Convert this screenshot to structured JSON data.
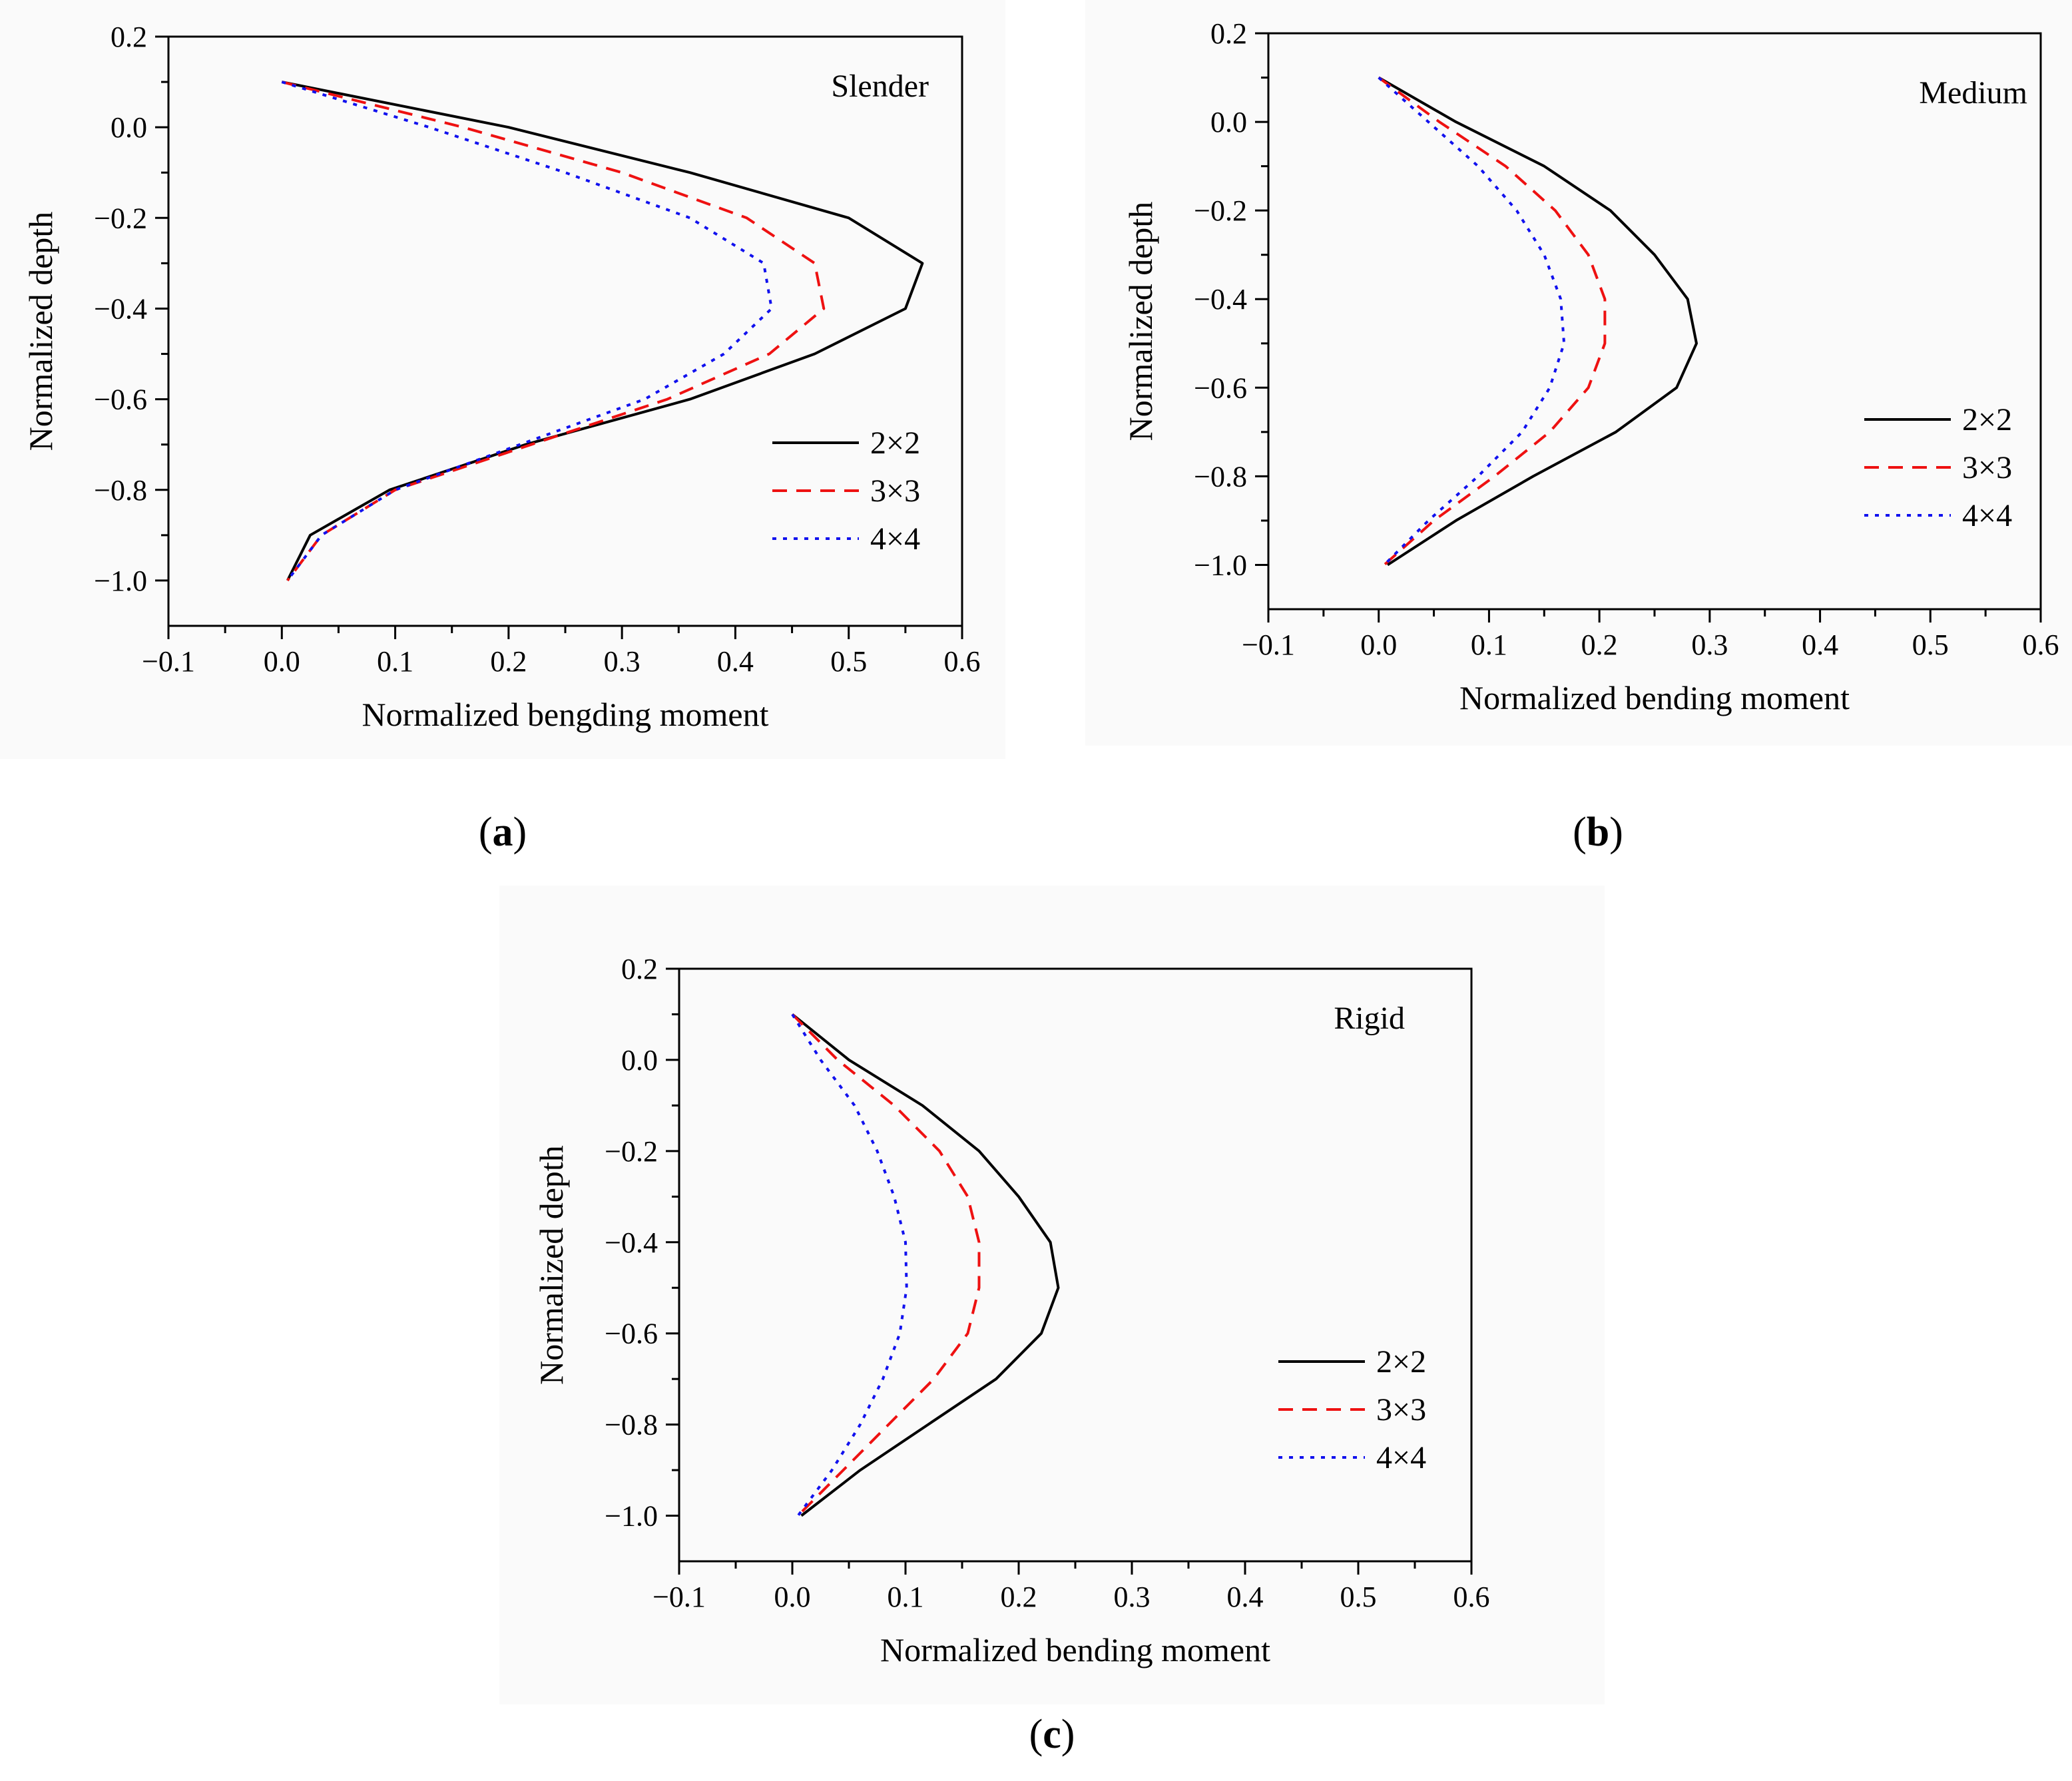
{
  "figure": {
    "panels": [
      {
        "id": "a",
        "caption_letter": "a",
        "chart_data": {
          "type": "line",
          "title": "Slender",
          "xlabel": "Normalized bengding moment",
          "ylabel": "Normalized depth",
          "xlim": [
            -0.1,
            0.6
          ],
          "ylim": [
            -1.1,
            0.2
          ],
          "xticks": [
            -0.1,
            0.0,
            0.1,
            0.2,
            0.3,
            0.4,
            0.5,
            0.6
          ],
          "xtick_labels": [
            "−0.1",
            "0.0",
            "0.1",
            "0.2",
            "0.3",
            "0.4",
            "0.5",
            "0.6"
          ],
          "yticks": [
            0.2,
            0.0,
            -0.2,
            -0.4,
            -0.6,
            -0.8,
            -1.0
          ],
          "ytick_labels": [
            "0.2",
            "0.0",
            "−0.2",
            "−0.4",
            "−0.6",
            "−0.8",
            "−1.0"
          ],
          "legend_position": "lower-right",
          "series": [
            {
              "name": "2×2",
              "color": "#000000",
              "dash": "solid",
              "x": [
                0.0,
                0.2,
                0.36,
                0.5,
                0.565,
                0.55,
                0.47,
                0.36,
                0.215,
                0.095,
                0.025,
                0.005
              ],
              "y": [
                0.1,
                0.0,
                -0.1,
                -0.2,
                -0.3,
                -0.4,
                -0.5,
                -0.6,
                -0.7,
                -0.8,
                -0.9,
                -1.0
              ]
            },
            {
              "name": "3×3",
              "color": "#ee1111",
              "dash": "dashed",
              "x": [
                0.0,
                0.16,
                0.3,
                0.41,
                0.47,
                0.478,
                0.43,
                0.34,
                0.22,
                0.1,
                0.035,
                0.005
              ],
              "y": [
                0.1,
                0.0,
                -0.1,
                -0.2,
                -0.3,
                -0.4,
                -0.5,
                -0.6,
                -0.7,
                -0.8,
                -0.9,
                -1.0
              ]
            },
            {
              "name": "4×4",
              "color": "#1111ee",
              "dash": "dotted",
              "x": [
                0.0,
                0.13,
                0.25,
                0.36,
                0.425,
                0.432,
                0.39,
                0.32,
                0.21,
                0.1,
                0.035,
                0.005
              ],
              "y": [
                0.1,
                0.0,
                -0.1,
                -0.2,
                -0.3,
                -0.4,
                -0.5,
                -0.6,
                -0.7,
                -0.8,
                -0.9,
                -1.0
              ]
            }
          ]
        }
      },
      {
        "id": "b",
        "caption_letter": "b",
        "chart_data": {
          "type": "line",
          "title": "Medium",
          "xlabel": "Normalized bending moment",
          "ylabel": "Normalized depth",
          "xlim": [
            -0.1,
            0.6
          ],
          "ylim": [
            -1.1,
            0.2
          ],
          "xticks": [
            -0.1,
            0.0,
            0.1,
            0.2,
            0.3,
            0.4,
            0.5,
            0.6
          ],
          "xtick_labels": [
            "−0.1",
            "0.0",
            "0.1",
            "0.2",
            "0.3",
            "0.4",
            "0.5",
            "0.6"
          ],
          "yticks": [
            0.2,
            0.0,
            -0.2,
            -0.4,
            -0.6,
            -0.8,
            -1.0
          ],
          "ytick_labels": [
            "0.2",
            "0.0",
            "−0.2",
            "−0.4",
            "−0.6",
            "−0.8",
            "−1.0"
          ],
          "legend_position": "right",
          "series": [
            {
              "name": "2×2",
              "color": "#000000",
              "dash": "solid",
              "x": [
                0.0,
                0.07,
                0.15,
                0.21,
                0.25,
                0.28,
                0.288,
                0.27,
                0.215,
                0.14,
                0.07,
                0.008
              ],
              "y": [
                0.1,
                0.0,
                -0.1,
                -0.2,
                -0.3,
                -0.4,
                -0.5,
                -0.6,
                -0.7,
                -0.8,
                -0.9,
                -1.0
              ]
            },
            {
              "name": "3×3",
              "color": "#ee1111",
              "dash": "dashed",
              "x": [
                0.0,
                0.055,
                0.115,
                0.16,
                0.19,
                0.205,
                0.205,
                0.19,
                0.155,
                0.105,
                0.05,
                0.005
              ],
              "y": [
                0.1,
                0.0,
                -0.1,
                -0.2,
                -0.3,
                -0.4,
                -0.5,
                -0.6,
                -0.7,
                -0.8,
                -0.9,
                -1.0
              ]
            },
            {
              "name": "4×4",
              "color": "#1111ee",
              "dash": "dotted",
              "x": [
                0.0,
                0.045,
                0.09,
                0.125,
                0.15,
                0.165,
                0.168,
                0.155,
                0.13,
                0.09,
                0.045,
                0.005
              ],
              "y": [
                0.1,
                0.0,
                -0.1,
                -0.2,
                -0.3,
                -0.4,
                -0.5,
                -0.6,
                -0.7,
                -0.8,
                -0.9,
                -1.0
              ]
            }
          ]
        }
      },
      {
        "id": "c",
        "caption_letter": "c",
        "chart_data": {
          "type": "line",
          "title": "Rigid",
          "xlabel": "Normalized bending moment",
          "ylabel": "Normalized depth",
          "xlim": [
            -0.1,
            0.6
          ],
          "ylim": [
            -1.1,
            0.2
          ],
          "xticks": [
            -0.1,
            0.0,
            0.1,
            0.2,
            0.3,
            0.4,
            0.5,
            0.6
          ],
          "xtick_labels": [
            "−0.1",
            "0.0",
            "0.1",
            "0.2",
            "0.3",
            "0.4",
            "0.5",
            "0.6"
          ],
          "yticks": [
            0.2,
            0.0,
            -0.2,
            -0.4,
            -0.6,
            -0.8,
            -1.0
          ],
          "ytick_labels": [
            "0.2",
            "0.0",
            "−0.2",
            "−0.4",
            "−0.6",
            "−0.8",
            "−1.0"
          ],
          "legend_position": "right",
          "series": [
            {
              "name": "2×2",
              "color": "#000000",
              "dash": "solid",
              "x": [
                0.0,
                0.05,
                0.115,
                0.165,
                0.2,
                0.228,
                0.235,
                0.22,
                0.18,
                0.12,
                0.06,
                0.008
              ],
              "y": [
                0.1,
                0.0,
                -0.1,
                -0.2,
                -0.3,
                -0.4,
                -0.5,
                -0.6,
                -0.7,
                -0.8,
                -0.9,
                -1.0
              ]
            },
            {
              "name": "3×3",
              "color": "#ee1111",
              "dash": "dashed",
              "x": [
                0.0,
                0.04,
                0.09,
                0.13,
                0.155,
                0.165,
                0.165,
                0.155,
                0.125,
                0.085,
                0.045,
                0.005
              ],
              "y": [
                0.1,
                0.0,
                -0.1,
                -0.2,
                -0.3,
                -0.4,
                -0.5,
                -0.6,
                -0.7,
                -0.8,
                -0.9,
                -1.0
              ]
            },
            {
              "name": "4×4",
              "color": "#1111ee",
              "dash": "dotted",
              "x": [
                0.0,
                0.025,
                0.055,
                0.075,
                0.09,
                0.1,
                0.101,
                0.095,
                0.08,
                0.06,
                0.035,
                0.005
              ],
              "y": [
                0.1,
                0.0,
                -0.1,
                -0.2,
                -0.3,
                -0.4,
                -0.5,
                -0.6,
                -0.7,
                -0.8,
                -0.9,
                -1.0
              ]
            }
          ]
        }
      }
    ]
  }
}
